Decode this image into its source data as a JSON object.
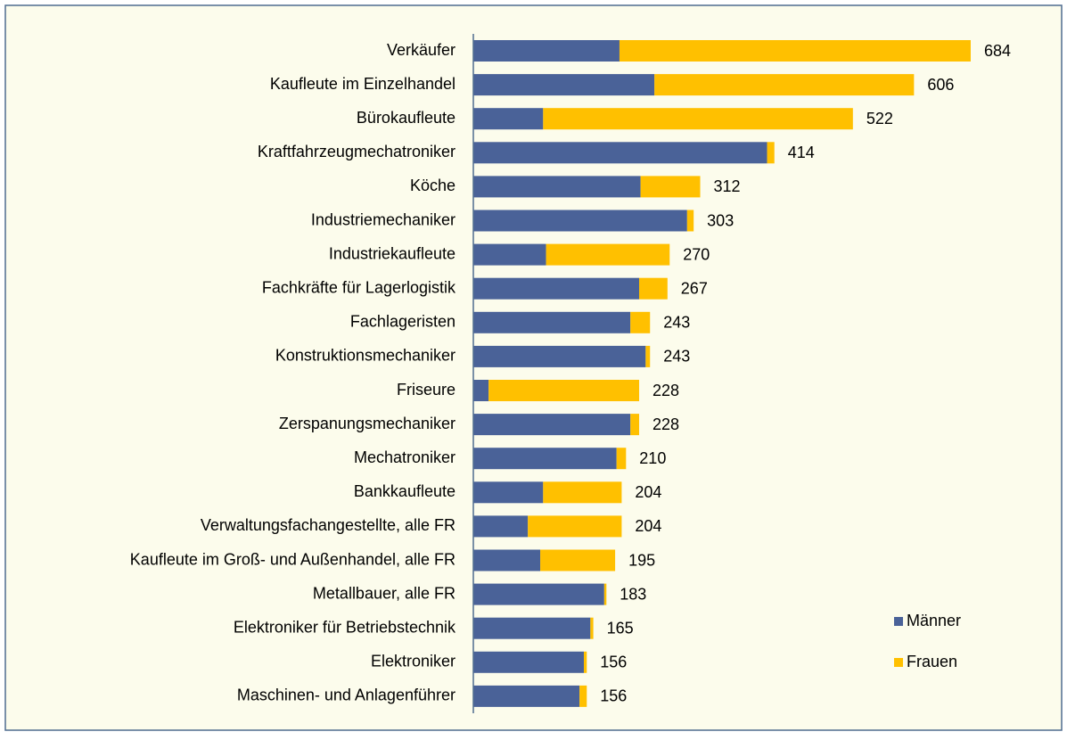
{
  "chart_data": {
    "type": "stacked-bar-horizontal",
    "categories": [
      "Verkäufer",
      "Kaufleute im Einzelhandel",
      "Bürokaufleute",
      "Kraftfahrzeugmechatroniker",
      "Köche",
      "Industriemechaniker",
      "Industriekaufleute",
      "Fachkräfte für Lagerlogistik",
      "Fachlageristen",
      "Konstruktionsmechaniker",
      "Friseure",
      "Zerspanungsmechaniker",
      "Mechatroniker",
      "Bankkaufleute",
      "Verwaltungsfachangestellte, alle FR",
      "Kaufleute im Groß- und Außenhandel, alle FR",
      "Metallbauer, alle FR",
      "Elektroniker für Betriebstechnik",
      "Elektroniker",
      "Maschinen- und Anlagenführer"
    ],
    "series": [
      {
        "name": "Männer",
        "color": "#4a6298",
        "values": [
          201,
          249,
          96,
          404,
          230,
          294,
          100,
          228,
          216,
          237,
          21,
          216,
          197,
          96,
          75,
          92,
          180,
          161,
          152,
          146
        ]
      },
      {
        "name": "Frauen",
        "color": "#ffc000",
        "values": [
          483,
          357,
          426,
          10,
          82,
          9,
          170,
          39,
          27,
          6,
          207,
          12,
          13,
          108,
          129,
          103,
          3,
          4,
          4,
          10
        ]
      }
    ],
    "totals": [
      684,
      606,
      522,
      414,
      312,
      303,
      270,
      267,
      243,
      243,
      228,
      228,
      210,
      204,
      204,
      195,
      183,
      165,
      156,
      156
    ],
    "xlim": [
      0,
      800
    ],
    "legend": "lower right"
  }
}
